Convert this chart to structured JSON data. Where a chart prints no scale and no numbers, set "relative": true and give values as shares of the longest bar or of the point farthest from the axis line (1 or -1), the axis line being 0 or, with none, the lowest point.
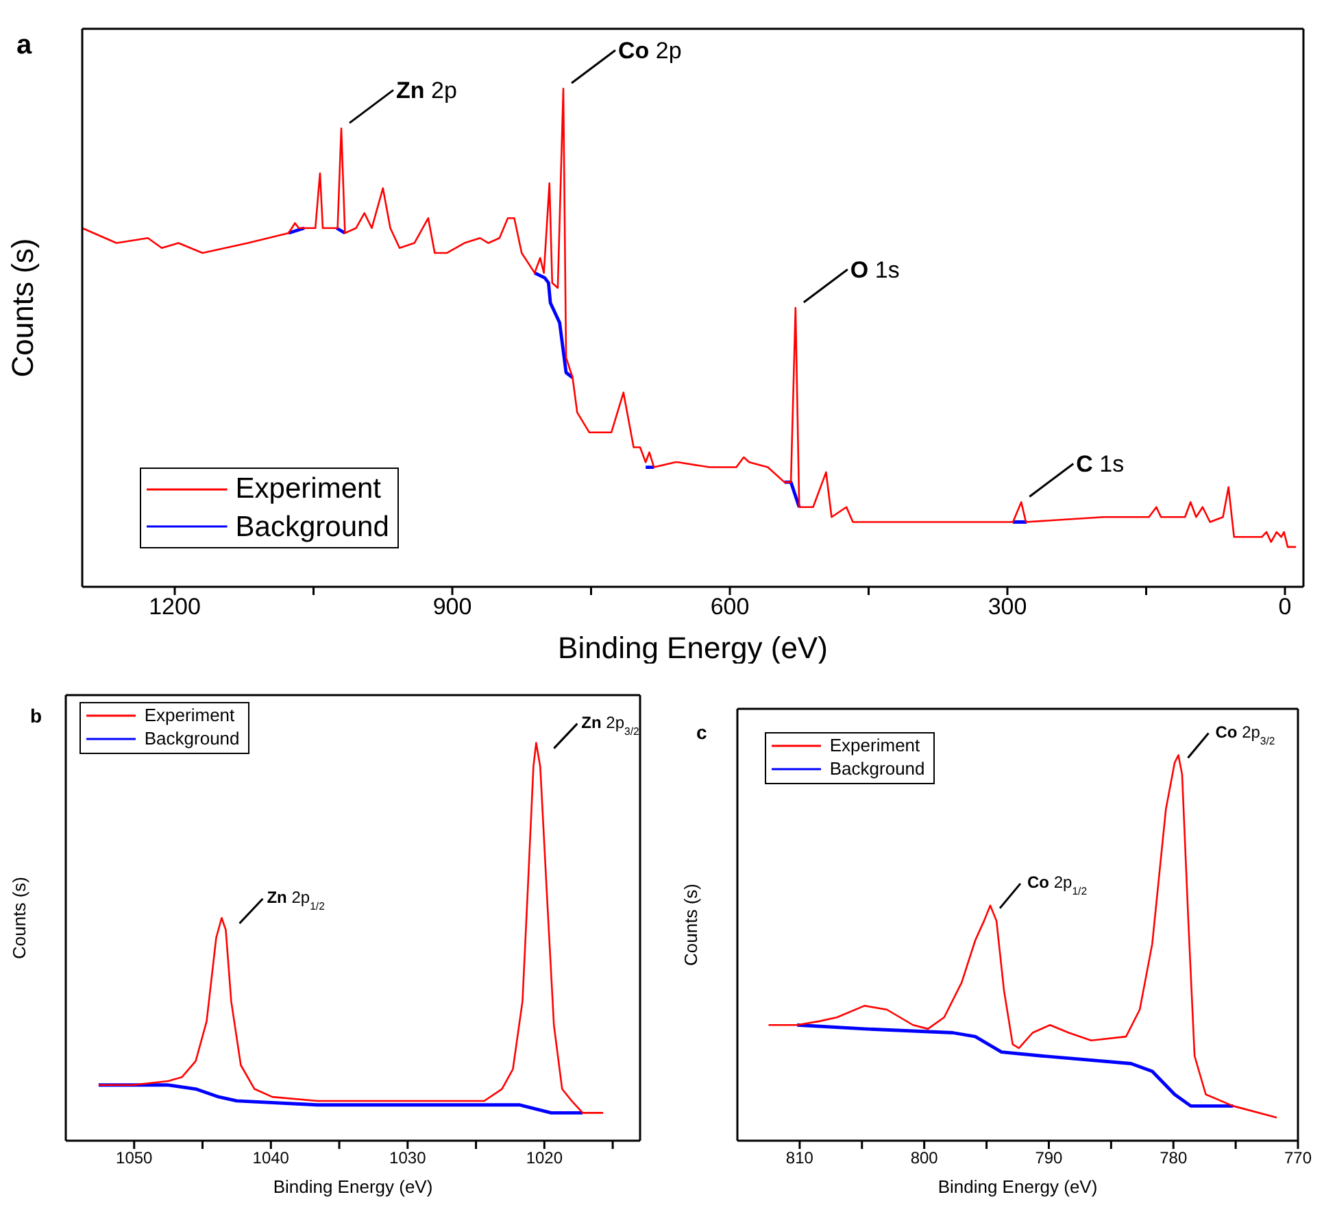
{
  "chart_data": [
    {
      "type": "line",
      "title": "a",
      "xlabel": "Binding Energy (eV)",
      "ylabel": "Counts (s)",
      "relative": true,
      "xlim": [
        1300,
        -20
      ],
      "xticks": [
        1200,
        {
          "value": 1050,
          "label": null
        },
        900,
        {
          "value": 750,
          "label": null
        },
        600,
        {
          "value": 450,
          "label": null
        },
        300,
        {
          "value": 150,
          "label": null
        },
        0
      ],
      "tick_labels": "x",
      "legend": "bottom left",
      "series": [
        {
          "name": "Experiment",
          "color": "#ff0000",
          "x": [
            1300,
            1263,
            1229,
            1214,
            1196,
            1170,
            1121,
            1077,
            1070,
            1066,
            1048,
            1043,
            1040,
            1024,
            1020,
            1016,
            1004,
            995,
            987,
            975,
            967,
            957,
            941,
            926,
            919,
            906,
            887,
            870,
            861,
            849,
            840,
            833,
            825,
            811,
            805,
            801,
            795,
            792,
            786,
            780,
            777,
            770,
            765,
            752,
            728,
            715,
            704,
            697,
            691,
            687,
            682,
            659,
            656,
            622,
            593,
            585,
            579,
            559,
            541,
            534,
            529,
            525,
            510,
            496,
            490,
            474,
            467,
            392,
            294,
            285,
            280,
            196,
            147,
            139,
            134,
            108,
            102,
            96,
            89,
            81,
            67,
            61,
            55,
            25,
            20,
            15,
            9,
            4,
            1,
            -3,
            -12
          ],
          "values": [
            0.72,
            0.69,
            0.7,
            0.68,
            0.69,
            0.67,
            0.69,
            0.71,
            0.73,
            0.72,
            0.72,
            0.83,
            0.72,
            0.72,
            0.92,
            0.71,
            0.72,
            0.75,
            0.72,
            0.8,
            0.72,
            0.68,
            0.69,
            0.74,
            0.67,
            0.67,
            0.69,
            0.7,
            0.69,
            0.7,
            0.74,
            0.74,
            0.67,
            0.63,
            0.66,
            0.63,
            0.81,
            0.61,
            0.6,
            1,
            0.46,
            0.42,
            0.35,
            0.31,
            0.31,
            0.39,
            0.28,
            0.28,
            0.25,
            0.27,
            0.24,
            0.25,
            0.25,
            0.24,
            0.24,
            0.26,
            0.25,
            0.24,
            0.21,
            0.21,
            0.56,
            0.16,
            0.16,
            0.23,
            0.14,
            0.16,
            0.13,
            0.13,
            0.13,
            0.17,
            0.13,
            0.14,
            0.14,
            0.16,
            0.14,
            0.14,
            0.17,
            0.14,
            0.16,
            0.13,
            0.14,
            0.2,
            0.1,
            0.1,
            0.11,
            0.09,
            0.11,
            0.1,
            0.11,
            0.08,
            0.08
          ]
        },
        {
          "name": "Background",
          "color": "#0000ff",
          "x": [
            1077,
            1060,
            1059,
            1025,
            1016,
            1015,
            811,
            800,
            796,
            794,
            784,
            777,
            770,
            769,
            691,
            682,
            681,
            541,
            534,
            525,
            524,
            294,
            279
          ],
          "values": [
            0.71,
            0.72,
            null,
            0.72,
            0.71,
            null,
            0.63,
            0.62,
            0.61,
            0.57,
            0.53,
            0.43,
            0.42,
            null,
            0.24,
            0.24,
            null,
            0.21,
            0.21,
            0.16,
            null,
            0.13,
            0.13
          ]
        }
      ],
      "annotations": [
        {
          "text": "Zn 2p",
          "x": 1020,
          "y": 0.92
        },
        {
          "text": "Co 2p",
          "x": 780,
          "y": 1
        },
        {
          "text": "O 1s",
          "x": 529,
          "y": 0.56
        },
        {
          "text": "C 1s",
          "x": 285,
          "y": 0.17
        }
      ]
    },
    {
      "type": "line",
      "title": "b",
      "xlabel": "Binding Energy (eV)",
      "ylabel": "Counts (s)",
      "relative": true,
      "xlim": [
        1055,
        1013
      ],
      "xticks": [
        1050,
        {
          "value": 1045,
          "label": null
        },
        1040,
        {
          "value": 1035,
          "label": null
        },
        1030,
        {
          "value": 1025,
          "label": null
        },
        1020,
        {
          "value": 1015,
          "label": null
        }
      ],
      "tick_labels": "x",
      "legend": "top left",
      "series": [
        {
          "name": "Experiment",
          "color": "#ff0000",
          "x": [
            1052.6,
            1050.1,
            1047.5,
            1046.5,
            1045.5,
            1044.7,
            1044.0,
            1043.6,
            1043.3,
            1042.9,
            1042.2,
            1041.2,
            1039.9,
            1036.6,
            1033.3,
            1030.0,
            1026.7,
            1024.4,
            1023.1,
            1022.3,
            1021.6,
            1021.2,
            1020.8,
            1020.6,
            1020.3,
            1019.8,
            1019.3,
            1018.7,
            1018.0,
            1017.2,
            1015.7
          ],
          "values": [
            0.14,
            0.14,
            0.15,
            0.16,
            0.2,
            0.3,
            0.51,
            0.56,
            0.53,
            0.35,
            0.19,
            0.13,
            0.11,
            0.1,
            0.1,
            0.1,
            0.1,
            0.1,
            0.13,
            0.18,
            0.35,
            0.64,
            0.94,
            1,
            0.94,
            0.61,
            0.29,
            0.13,
            0.1,
            0.07,
            0.07
          ]
        },
        {
          "name": "Background",
          "color": "#0000ff",
          "x": [
            1052.6,
            1047.5,
            1045.5,
            1043.8,
            1042.5,
            1036.6,
            1021.8,
            1019.5,
            1017.2
          ],
          "values": [
            0.14,
            0.14,
            0.13,
            0.11,
            0.1,
            0.09,
            0.09,
            0.07,
            0.07
          ]
        }
      ],
      "annotations": [
        {
          "text": "Zn 2p$_{1/2}$",
          "x": 1043.6,
          "y": 0.56
        },
        {
          "text": "Zn 2p$_{3/2}$",
          "x": 1020.6,
          "y": 1
        }
      ]
    },
    {
      "type": "line",
      "title": "c",
      "xlabel": "Binding Energy (eV)",
      "ylabel": "Counts (s)",
      "relative": true,
      "xlim": [
        815,
        770
      ],
      "xticks": [
        810,
        {
          "value": 805,
          "label": null
        },
        800,
        {
          "value": 795,
          "label": null
        },
        790,
        {
          "value": 785,
          "label": null
        },
        780,
        {
          "value": 775,
          "label": null
        },
        770
      ],
      "tick_labels": "x",
      "legend": "top left",
      "series": [
        {
          "name": "Experiment",
          "color": "#ff0000",
          "x": [
            812.5,
            810.2,
            808.4,
            807.0,
            804.8,
            803.0,
            800.9,
            799.7,
            798.4,
            797.0,
            795.9,
            795.2,
            794.7,
            794.2,
            793.6,
            792.9,
            792.4,
            791.3,
            789.9,
            788.4,
            786.6,
            783.8,
            782.7,
            781.7,
            780.6,
            779.9,
            779.6,
            779.3,
            778.8,
            778.3,
            777.4,
            775.2,
            771.7
          ],
          "values": [
            0.3,
            0.3,
            0.31,
            0.32,
            0.35,
            0.34,
            0.3,
            0.29,
            0.32,
            0.41,
            0.52,
            0.57,
            0.61,
            0.57,
            0.39,
            0.25,
            0.24,
            0.28,
            0.3,
            0.28,
            0.26,
            0.27,
            0.34,
            0.51,
            0.86,
            0.98,
            1,
            0.95,
            0.57,
            0.22,
            0.12,
            0.09,
            0.06
          ]
        },
        {
          "name": "Background",
          "color": "#0000ff",
          "x": [
            810.2,
            804.8,
            797.7,
            795.9,
            793.8,
            790.6,
            783.4,
            781.7,
            779.9,
            778.6,
            775.2
          ],
          "values": [
            0.3,
            0.29,
            0.28,
            0.27,
            0.23,
            0.22,
            0.2,
            0.18,
            0.12,
            0.09,
            0.09
          ]
        }
      ],
      "annotations": [
        {
          "text": "Co 2p$_{1/2}$",
          "x": 794.7,
          "y": 0.61
        },
        {
          "text": "Co 2p$_{3/2}$",
          "x": 779.6,
          "y": 1
        }
      ]
    }
  ]
}
